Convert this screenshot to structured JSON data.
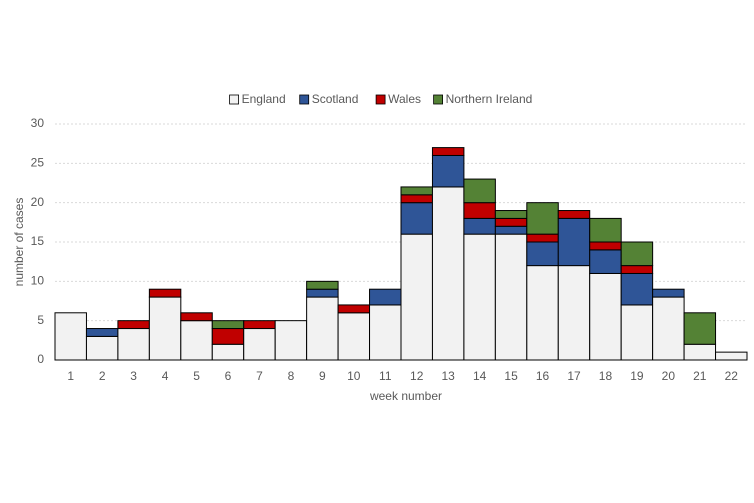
{
  "chart_data": {
    "type": "stacked_bar",
    "x_label": "week number",
    "y_label": "number of cases",
    "categories": [
      "1",
      "2",
      "3",
      "4",
      "5",
      "6",
      "7",
      "8",
      "9",
      "10",
      "11",
      "12",
      "13",
      "14",
      "15",
      "16",
      "17",
      "18",
      "19",
      "20",
      "21",
      "22"
    ],
    "series": [
      {
        "name": "England",
        "color": "#f2f2f2",
        "values": [
          6,
          3,
          4,
          8,
          5,
          2,
          4,
          5,
          8,
          6,
          7,
          16,
          22,
          16,
          16,
          12,
          12,
          11,
          7,
          8,
          2,
          1
        ]
      },
      {
        "name": "Scotland",
        "color": "#2f5597",
        "values": [
          0,
          1,
          0,
          0,
          0,
          0,
          0,
          0,
          1,
          0,
          2,
          4,
          4,
          2,
          1,
          3,
          6,
          3,
          4,
          1,
          0,
          0
        ]
      },
      {
        "name": "Wales",
        "color": "#c00000",
        "values": [
          0,
          0,
          1,
          1,
          1,
          2,
          1,
          0,
          0,
          1,
          0,
          1,
          1,
          2,
          1,
          1,
          1,
          1,
          1,
          0,
          0,
          0
        ]
      },
      {
        "name": "Northern Ireland",
        "color": "#548235",
        "values": [
          0,
          0,
          0,
          0,
          0,
          1,
          0,
          0,
          1,
          0,
          0,
          1,
          0,
          3,
          1,
          4,
          0,
          3,
          3,
          0,
          4,
          0
        ]
      }
    ],
    "ylim": [
      0,
      30
    ],
    "yticks": [
      0,
      5,
      10,
      15,
      20,
      25,
      30
    ],
    "grid": true
  }
}
